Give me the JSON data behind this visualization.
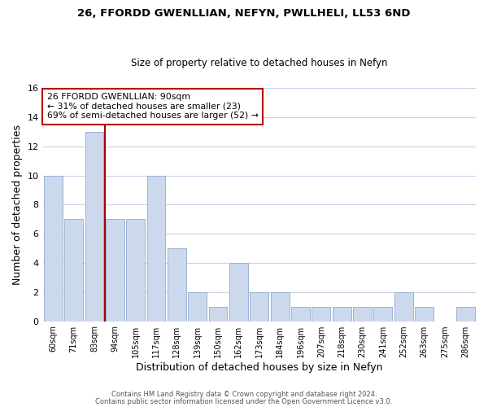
{
  "title": "26, FFORDD GWENLLIAN, NEFYN, PWLLHELI, LL53 6ND",
  "subtitle": "Size of property relative to detached houses in Nefyn",
  "xlabel": "Distribution of detached houses by size in Nefyn",
  "ylabel": "Number of detached properties",
  "bar_labels": [
    "60sqm",
    "71sqm",
    "83sqm",
    "94sqm",
    "105sqm",
    "117sqm",
    "128sqm",
    "139sqm",
    "150sqm",
    "162sqm",
    "173sqm",
    "184sqm",
    "196sqm",
    "207sqm",
    "218sqm",
    "230sqm",
    "241sqm",
    "252sqm",
    "263sqm",
    "275sqm",
    "286sqm"
  ],
  "bar_values": [
    10,
    7,
    13,
    7,
    7,
    10,
    5,
    2,
    1,
    4,
    2,
    2,
    1,
    1,
    1,
    1,
    1,
    2,
    1,
    0,
    1
  ],
  "bar_color": "#ccd9ed",
  "bar_edge_color": "#9ab3d5",
  "vline_index": 2,
  "vline_color": "#aa0000",
  "annotation_title": "26 FFORDD GWENLLIAN: 90sqm",
  "annotation_line1": "← 31% of detached houses are smaller (23)",
  "annotation_line2": "69% of semi-detached houses are larger (52) →",
  "annotation_box_color": "#ffffff",
  "annotation_box_edge_color": "#bb0000",
  "ylim": [
    0,
    16
  ],
  "yticks": [
    0,
    2,
    4,
    6,
    8,
    10,
    12,
    14,
    16
  ],
  "footer_line1": "Contains HM Land Registry data © Crown copyright and database right 2024.",
  "footer_line2": "Contains public sector information licensed under the Open Government Licence v3.0.",
  "background_color": "#ffffff",
  "grid_color": "#c8d4e8",
  "title_fontsize": 9.5,
  "subtitle_fontsize": 8.5
}
